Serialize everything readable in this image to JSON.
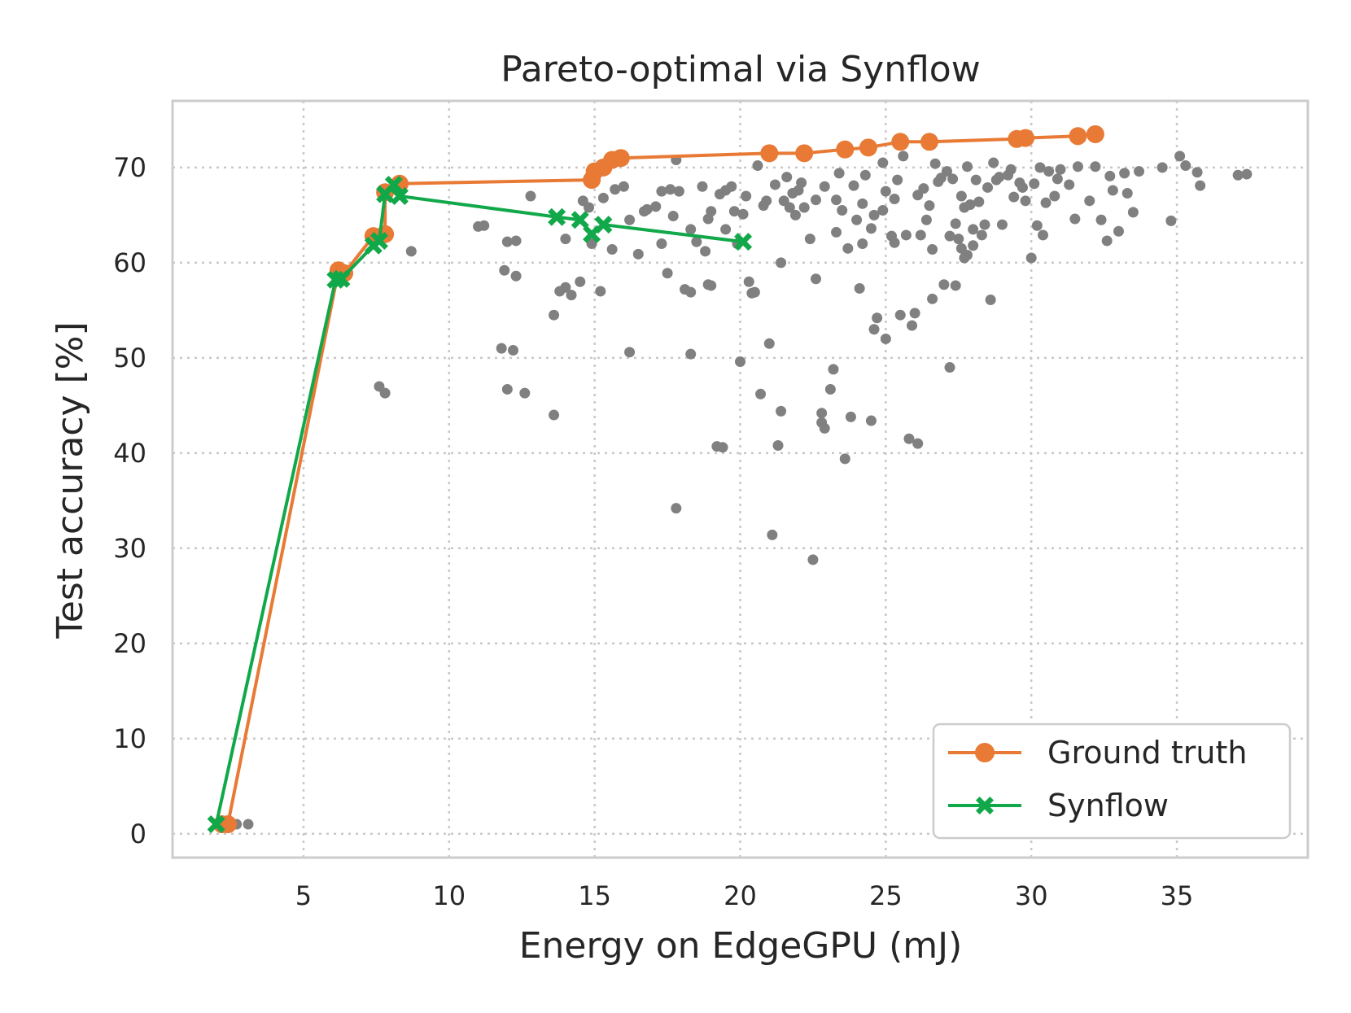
{
  "chart_data": {
    "type": "scatter",
    "title": "Pareto-optimal via Synflow",
    "xlabel": "Energy on EdgeGPU (mJ)",
    "ylabel": "Test accuracy [%]",
    "xlim": [
      0.5,
      39.5
    ],
    "ylim": [
      -2.5,
      77
    ],
    "xticks": [
      "5",
      "10",
      "15",
      "20",
      "25",
      "30",
      "35"
    ],
    "yticks": [
      "0",
      "10",
      "20",
      "30",
      "40",
      "50",
      "60",
      "70"
    ],
    "grid": true,
    "legend_position": "lower right",
    "colors": {
      "ground_truth": "#e87a35",
      "synflow": "#11a84a",
      "background_points": "#808080",
      "frame": "#cccccc",
      "grid": "#c8c8c8"
    },
    "series": [
      {
        "name": "Ground truth",
        "style": "line-circle",
        "points": [
          [
            2.2,
            1.0
          ],
          [
            2.4,
            1.0
          ],
          [
            6.2,
            59.2
          ],
          [
            6.4,
            58.9
          ],
          [
            7.4,
            62.8
          ],
          [
            7.8,
            63.0
          ],
          [
            7.8,
            67.4
          ],
          [
            8.3,
            68.3
          ],
          [
            14.9,
            68.7
          ],
          [
            15.0,
            69.6
          ],
          [
            15.3,
            70.0
          ],
          [
            15.6,
            70.8
          ],
          [
            15.9,
            71.0
          ],
          [
            21.0,
            71.5
          ],
          [
            22.2,
            71.5
          ],
          [
            23.6,
            71.9
          ],
          [
            24.4,
            72.1
          ],
          [
            25.5,
            72.7
          ],
          [
            26.5,
            72.7
          ],
          [
            29.5,
            73.0
          ],
          [
            29.8,
            73.1
          ],
          [
            31.6,
            73.3
          ],
          [
            32.2,
            73.5
          ]
        ]
      },
      {
        "name": "Synflow",
        "style": "line-x",
        "points": [
          [
            2.0,
            1.0
          ],
          [
            6.1,
            58.2
          ],
          [
            6.3,
            58.3
          ],
          [
            7.4,
            61.8
          ],
          [
            7.6,
            62.3
          ],
          [
            7.8,
            67.2
          ],
          [
            8.1,
            68.2
          ],
          [
            8.3,
            67.0
          ],
          [
            13.7,
            64.8
          ],
          [
            14.5,
            64.5
          ],
          [
            14.9,
            63.0
          ],
          [
            15.3,
            64.0
          ],
          [
            20.1,
            62.2
          ]
        ]
      }
    ],
    "background_points": [
      [
        2.7,
        1.0
      ],
      [
        3.1,
        1.0
      ],
      [
        7.6,
        47.0
      ],
      [
        7.8,
        46.3
      ],
      [
        8.7,
        61.2
      ],
      [
        11.0,
        63.8
      ],
      [
        11.2,
        63.9
      ],
      [
        11.8,
        51.0
      ],
      [
        12.0,
        46.7
      ],
      [
        12.2,
        50.8
      ],
      [
        12.0,
        62.2
      ],
      [
        12.3,
        62.3
      ],
      [
        11.9,
        59.2
      ],
      [
        12.3,
        58.6
      ],
      [
        12.6,
        46.3
      ],
      [
        12.8,
        67.0
      ],
      [
        13.6,
        44.0
      ],
      [
        13.6,
        54.5
      ],
      [
        13.8,
        57.0
      ],
      [
        14.0,
        57.4
      ],
      [
        14.0,
        62.5
      ],
      [
        14.2,
        56.6
      ],
      [
        14.5,
        58.0
      ],
      [
        14.6,
        66.5
      ],
      [
        14.9,
        62.0
      ],
      [
        15.2,
        57.0
      ],
      [
        15.3,
        66.8
      ],
      [
        15.7,
        67.7
      ],
      [
        16.0,
        68.0
      ],
      [
        16.2,
        64.5
      ],
      [
        16.2,
        50.6
      ],
      [
        16.7,
        65.4
      ],
      [
        16.8,
        65.6
      ],
      [
        17.1,
        65.9
      ],
      [
        17.3,
        62.0
      ],
      [
        17.3,
        67.5
      ],
      [
        17.5,
        58.9
      ],
      [
        17.6,
        67.7
      ],
      [
        17.8,
        34.2
      ],
      [
        17.9,
        67.5
      ],
      [
        18.1,
        57.2
      ],
      [
        18.3,
        56.9
      ],
      [
        18.3,
        50.4
      ],
      [
        18.3,
        63.5
      ],
      [
        18.5,
        62.2
      ],
      [
        18.7,
        68.0
      ],
      [
        18.8,
        61.2
      ],
      [
        18.9,
        57.7
      ],
      [
        19.0,
        57.6
      ],
      [
        19.0,
        65.4
      ],
      [
        19.2,
        40.7
      ],
      [
        19.3,
        67.2
      ],
      [
        19.4,
        40.6
      ],
      [
        19.5,
        63.5
      ],
      [
        19.5,
        67.6
      ],
      [
        19.7,
        68.0
      ],
      [
        19.9,
        62.0
      ],
      [
        20.0,
        49.6
      ],
      [
        20.1,
        65.1
      ],
      [
        20.2,
        67.0
      ],
      [
        20.3,
        58.0
      ],
      [
        20.4,
        56.8
      ],
      [
        20.5,
        56.9
      ],
      [
        20.7,
        46.2
      ],
      [
        20.8,
        66.0
      ],
      [
        21.0,
        51.5
      ],
      [
        21.1,
        31.4
      ],
      [
        21.3,
        40.8
      ],
      [
        21.4,
        44.4
      ],
      [
        21.4,
        60.0
      ],
      [
        21.5,
        66.5
      ],
      [
        21.7,
        65.8
      ],
      [
        21.8,
        67.3
      ],
      [
        22.0,
        67.6
      ],
      [
        22.2,
        65.8
      ],
      [
        22.4,
        62.5
      ],
      [
        22.5,
        28.8
      ],
      [
        22.6,
        58.3
      ],
      [
        22.8,
        44.2
      ],
      [
        22.8,
        43.2
      ],
      [
        22.9,
        42.6
      ],
      [
        23.1,
        46.7
      ],
      [
        23.2,
        48.8
      ],
      [
        23.3,
        66.6
      ],
      [
        23.5,
        65.5
      ],
      [
        23.6,
        39.4
      ],
      [
        23.7,
        61.5
      ],
      [
        23.8,
        43.8
      ],
      [
        24.0,
        64.5
      ],
      [
        24.1,
        57.3
      ],
      [
        24.2,
        62.0
      ],
      [
        24.3,
        69.2
      ],
      [
        24.5,
        43.4
      ],
      [
        24.6,
        53.0
      ],
      [
        24.7,
        54.2
      ],
      [
        24.9,
        65.5
      ],
      [
        25.0,
        52.0
      ],
      [
        25.2,
        62.8
      ],
      [
        25.3,
        66.7
      ],
      [
        25.5,
        54.5
      ],
      [
        25.8,
        41.5
      ],
      [
        25.9,
        53.4
      ],
      [
        26.0,
        54.7
      ],
      [
        26.1,
        41.0
      ],
      [
        26.2,
        62.9
      ],
      [
        26.4,
        64.5
      ],
      [
        26.5,
        66.0
      ],
      [
        26.6,
        56.2
      ],
      [
        26.8,
        68.5
      ],
      [
        27.0,
        57.7
      ],
      [
        27.2,
        49.0
      ],
      [
        27.4,
        57.6
      ],
      [
        27.5,
        62.5
      ],
      [
        27.6,
        61.5
      ],
      [
        27.7,
        65.8
      ],
      [
        27.8,
        60.8
      ],
      [
        28.0,
        63.5
      ],
      [
        28.2,
        66.4
      ],
      [
        28.4,
        64.0
      ],
      [
        28.6,
        56.1
      ],
      [
        28.8,
        68.7
      ],
      [
        29.0,
        64.0
      ],
      [
        29.2,
        69.2
      ],
      [
        29.4,
        66.9
      ],
      [
        29.6,
        68.4
      ],
      [
        29.8,
        66.5
      ],
      [
        30.0,
        60.5
      ],
      [
        30.2,
        63.9
      ],
      [
        30.4,
        62.9
      ],
      [
        30.6,
        69.6
      ],
      [
        30.8,
        67.0
      ],
      [
        31.0,
        69.8
      ],
      [
        31.3,
        68.2
      ],
      [
        31.6,
        70.1
      ],
      [
        32.0,
        66.5
      ],
      [
        32.2,
        70.1
      ],
      [
        32.4,
        64.5
      ],
      [
        32.6,
        62.3
      ],
      [
        32.8,
        67.6
      ],
      [
        33.0,
        63.3
      ],
      [
        33.2,
        69.4
      ],
      [
        33.5,
        65.3
      ],
      [
        33.7,
        69.6
      ],
      [
        34.5,
        70.0
      ],
      [
        34.8,
        64.4
      ],
      [
        35.1,
        71.2
      ],
      [
        35.3,
        70.2
      ],
      [
        35.7,
        69.5
      ],
      [
        35.8,
        68.1
      ],
      [
        37.1,
        69.2
      ],
      [
        37.4,
        69.3
      ],
      [
        24.6,
        65.0
      ],
      [
        25.0,
        67.5
      ],
      [
        25.4,
        68.7
      ],
      [
        25.7,
        62.9
      ],
      [
        26.3,
        67.8
      ],
      [
        26.9,
        68.9
      ],
      [
        27.1,
        69.6
      ],
      [
        27.3,
        68.8
      ],
      [
        27.6,
        67.0
      ],
      [
        27.9,
        66.1
      ],
      [
        28.3,
        62.9
      ],
      [
        28.5,
        67.9
      ],
      [
        28.9,
        69.0
      ],
      [
        29.3,
        69.8
      ],
      [
        29.7,
        67.9
      ],
      [
        30.1,
        68.3
      ],
      [
        30.5,
        66.3
      ],
      [
        30.9,
        68.8
      ],
      [
        23.9,
        68.1
      ],
      [
        23.4,
        69.4
      ],
      [
        22.9,
        68.0
      ],
      [
        22.6,
        66.6
      ],
      [
        22.1,
        68.4
      ],
      [
        21.6,
        69.0
      ],
      [
        21.2,
        68.2
      ],
      [
        20.6,
        70.2
      ],
      [
        24.9,
        70.5
      ],
      [
        25.6,
        71.2
      ],
      [
        26.7,
        70.4
      ],
      [
        27.8,
        70.1
      ],
      [
        28.7,
        70.5
      ],
      [
        27.4,
        64.1
      ],
      [
        27.2,
        62.8
      ],
      [
        26.6,
        61.4
      ],
      [
        25.3,
        62.1
      ],
      [
        24.5,
        63.6
      ],
      [
        23.3,
        63.2
      ],
      [
        28.0,
        61.8
      ],
      [
        27.7,
        60.5
      ],
      [
        21.9,
        65.0
      ],
      [
        20.9,
        66.5
      ],
      [
        19.8,
        65.4
      ],
      [
        18.9,
        64.6
      ],
      [
        17.7,
        64.9
      ],
      [
        16.5,
        60.9
      ],
      [
        15.6,
        61.4
      ],
      [
        14.8,
        65.8
      ],
      [
        17.8,
        70.8
      ],
      [
        26.1,
        67.1
      ],
      [
        24.2,
        66.2
      ],
      [
        28.1,
        68.7
      ],
      [
        30.3,
        70.0
      ],
      [
        31.5,
        64.6
      ],
      [
        32.7,
        69.1
      ],
      [
        33.3,
        67.3
      ]
    ]
  }
}
